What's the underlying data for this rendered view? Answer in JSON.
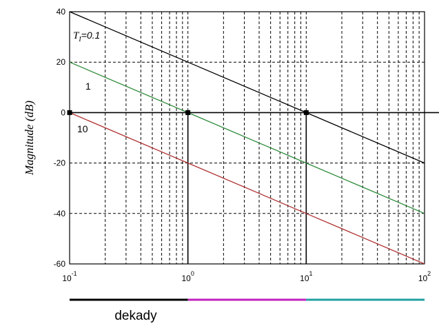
{
  "chart_data": {
    "type": "line",
    "xscale": "log",
    "xlim": [
      0.1,
      100
    ],
    "ylim": [
      -60,
      40
    ],
    "ylabel": "Magnitude (dB)",
    "xticks": [
      {
        "base": "10",
        "exp": "-1"
      },
      {
        "base": "10",
        "exp": "0"
      },
      {
        "base": "10",
        "exp": "1"
      },
      {
        "base": "10",
        "exp": "2"
      }
    ],
    "yticks": [
      "40",
      "20",
      "0",
      "-20",
      "-40",
      "-60"
    ],
    "grid": true,
    "series": [
      {
        "name": "Ti=0.1",
        "color": "#000000",
        "x": [
          0.1,
          1,
          10,
          100
        ],
        "y": [
          40,
          20,
          0,
          -20
        ]
      },
      {
        "name": "1",
        "color": "#2e8b3a",
        "x": [
          0.1,
          1,
          10,
          100
        ],
        "y": [
          20,
          0,
          -20,
          -40
        ]
      },
      {
        "name": "10",
        "color": "#b03030",
        "x": [
          0.1,
          1,
          10,
          100
        ],
        "y": [
          0,
          -20,
          -40,
          -60
        ]
      }
    ],
    "annotations": {
      "ti_symbol": "T",
      "ti_subscript": "I",
      "ti_value": "=0.1",
      "label_1": "1",
      "label_10": "10"
    },
    "markers": [
      {
        "x": 0.1,
        "y": 0
      },
      {
        "x": 1,
        "y": 0
      },
      {
        "x": 10,
        "y": 0
      }
    ],
    "vertical_markers": [
      1,
      10
    ],
    "decade_bar": {
      "caption": "dekady",
      "segments": [
        {
          "from": 0.1,
          "to": 1,
          "color": "#000000"
        },
        {
          "from": 1,
          "to": 10,
          "color": "#c020c0"
        },
        {
          "from": 10,
          "to": 100,
          "color": "#20a0a0"
        }
      ]
    }
  }
}
